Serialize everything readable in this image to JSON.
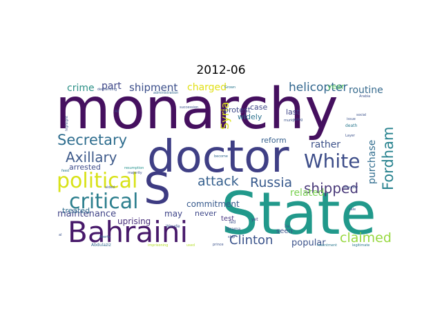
{
  "title": "2012-06",
  "words": [
    {
      "text": "monarchy",
      "color": "#45105f"
    },
    {
      "text": "State",
      "color": "#21998b"
    },
    {
      "text": "doctor",
      "color": "#3f3f85"
    },
    {
      "text": "S",
      "color": "#3d3b82"
    },
    {
      "text": "Bahraini",
      "color": "#47196a"
    },
    {
      "text": "political",
      "color": "#d8e219"
    },
    {
      "text": "critical",
      "color": "#2d7f8e"
    },
    {
      "text": "White",
      "color": "#3d4d89"
    },
    {
      "text": "Secretary",
      "color": "#2e6d8e"
    },
    {
      "text": "Axillary",
      "color": "#3f5b8b"
    },
    {
      "text": "Russia",
      "color": "#37598c"
    },
    {
      "text": "attack",
      "color": "#355f8d"
    },
    {
      "text": "shipped",
      "color": "#483878"
    },
    {
      "text": "Clinton",
      "color": "#3a538b"
    },
    {
      "text": "claimed",
      "color": "#97d83f"
    },
    {
      "text": "Fordham",
      "color": "#27828e"
    },
    {
      "text": "helicopter",
      "color": "#31668e"
    },
    {
      "text": "shipment",
      "color": "#3b4e8a"
    },
    {
      "text": "crime",
      "color": "#2b9086"
    },
    {
      "text": "part",
      "color": "#3f4788"
    },
    {
      "text": "charged",
      "color": "#e1e018"
    },
    {
      "text": "routine",
      "color": "#366a8d"
    },
    {
      "text": "year",
      "color": "#5bc862"
    },
    {
      "text": "Syria",
      "color": "#dae21b"
    },
    {
      "text": "rather",
      "color": "#3b5088"
    },
    {
      "text": "related",
      "color": "#7ad151"
    },
    {
      "text": "purchase",
      "color": "#2f6c8e"
    },
    {
      "text": "maintenance",
      "color": "#414487"
    },
    {
      "text": "popular",
      "color": "#3b528b"
    },
    {
      "text": "commitment",
      "color": "#36598c"
    },
    {
      "text": "uprising",
      "color": "#472c7a"
    },
    {
      "text": "arrested",
      "color": "#3e4c8a"
    },
    {
      "text": "treated",
      "color": "#2f6d8e"
    },
    {
      "text": "may",
      "color": "#3f4589"
    },
    {
      "text": "reform",
      "color": "#355f8d"
    },
    {
      "text": "widely",
      "color": "#2c718e"
    },
    {
      "text": "protest",
      "color": "#3f4889"
    },
    {
      "text": "case",
      "color": "#3f4788"
    },
    {
      "text": "last",
      "color": "#404688"
    },
    {
      "text": "never",
      "color": "#3f4889"
    },
    {
      "text": "test",
      "color": "#46337f"
    },
    {
      "text": "seen",
      "color": "#3b528b"
    },
    {
      "text": "Drama",
      "color": "#3b528b"
    },
    {
      "text": "led",
      "color": "#3b528b"
    },
    {
      "text": "yet",
      "color": "#443983"
    },
    {
      "text": "ha",
      "color": "#3b528b"
    },
    {
      "text": "Waude",
      "color": "#3b528b"
    },
    {
      "text": "Abdulaziz",
      "color": "#31688e"
    },
    {
      "text": "imprisoning",
      "color": "#b5de2b"
    },
    {
      "text": "resentment",
      "color": "#2a788e"
    },
    {
      "text": "legitimate",
      "color": "#2a788e"
    },
    {
      "text": "administration",
      "color": "#31688e"
    },
    {
      "text": "demanding",
      "color": "#3b528b"
    },
    {
      "text": "Ali",
      "color": "#3b528b"
    },
    {
      "text": "highlight",
      "color": "#3b528b"
    },
    {
      "text": "feed",
      "color": "#2a788e"
    },
    {
      "text": "al",
      "color": "#3b528b"
    },
    {
      "text": "liberty",
      "color": "#31688e"
    },
    {
      "text": "succession",
      "color": "#3b528b"
    },
    {
      "text": "become",
      "color": "#31688e"
    },
    {
      "text": "majority",
      "color": "#3b528b"
    },
    {
      "text": "resumption",
      "color": "#21918c"
    },
    {
      "text": "equality",
      "color": "#3b528b"
    },
    {
      "text": "social",
      "color": "#3b528b"
    },
    {
      "text": "death",
      "color": "#2a788e"
    },
    {
      "text": "issue",
      "color": "#3b528b"
    },
    {
      "text": "Layer",
      "color": "#3b528b"
    },
    {
      "text": "Arabia",
      "color": "#3b528b"
    },
    {
      "text": "murky",
      "color": "#3b528b"
    },
    {
      "text": "ruling",
      "color": "#3b528b"
    },
    {
      "text": "sale",
      "color": "#3b528b"
    },
    {
      "text": "Grown",
      "color": "#2a788e"
    },
    {
      "text": "prince",
      "color": "#3b528b"
    },
    {
      "text": "used",
      "color": "#b5de2b"
    },
    {
      "text": "aided",
      "color": "#3b528b"
    },
    {
      "text": "ship",
      "color": "#3b528b"
    }
  ]
}
